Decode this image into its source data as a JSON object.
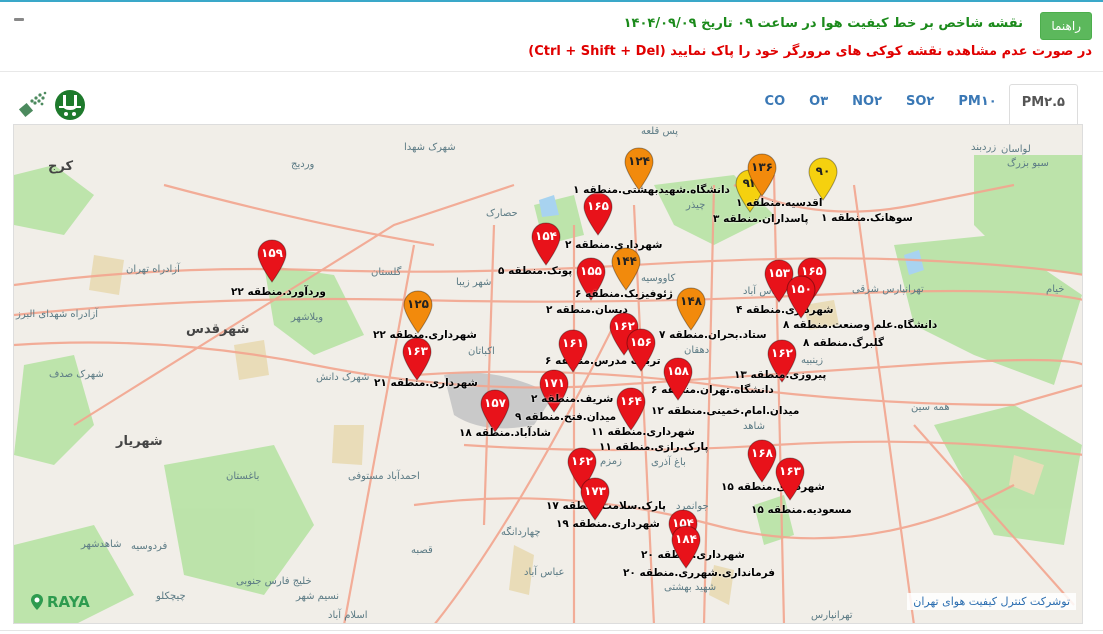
{
  "header": {
    "help_label": "راهنما",
    "title": "نقشه شاخص بر خط کیفیت هوا در ساعت ۰۹ تاریخ ۱۴۰۴/۰۹/۰۹",
    "warning": "در صورت عدم مشاهده نقشه کوکی های مرورگر خود را پاک نمایید (Ctrl + Shift + Del)"
  },
  "tabs": [
    {
      "label": "PM۲.۵",
      "active": true
    },
    {
      "label": "PM۱۰"
    },
    {
      "label": "SO۲"
    },
    {
      "label": "NO۲"
    },
    {
      "label": "O۳"
    },
    {
      "label": "CO"
    }
  ],
  "colors": {
    "red": "#e8121a",
    "orange": "#f28a0c",
    "yellow": "#f5d10f",
    "green_button": "#5cb85c",
    "title_green": "#1b8a1b",
    "warning_red": "#e00000"
  },
  "logos": [
    "air-quality-logo-icon",
    "tehran-municipality-logo-icon"
  ],
  "markers": [
    {
      "value": "۱۵۹",
      "level": "red",
      "label": "وردآورد.منطقه ۲۲"
    },
    {
      "value": "۱۲۵",
      "level": "orange",
      "label": "شهرداری.منطقه ۲۲"
    },
    {
      "value": "۱۶۳",
      "level": "red",
      "label": "شهرداری.منطقه ۲۱"
    },
    {
      "value": "۱۵۷",
      "level": "red",
      "label": "شادآباد.منطقه ۱۸"
    },
    {
      "value": "۱۷۱",
      "level": "red",
      "label": "میدان.فتح.منطقه ۹"
    },
    {
      "value": "۱۵۴",
      "level": "red",
      "label": "پونک.منطقه ۵"
    },
    {
      "value": "۱۶۵",
      "level": "red",
      "label": "شهرداری.منطقه ۲"
    },
    {
      "value": "۱۲۴",
      "level": "orange",
      "label": "دانشگاه.شهیدبهشتی.منطقه ۱"
    },
    {
      "value": "۱۵۵",
      "level": "red",
      "label": "دیسان.منطقه ۲"
    },
    {
      "value": "۱۴۴",
      "level": "orange",
      "label": "ژئوفیزیک.منطقه ۶"
    },
    {
      "value": "۱۶۲",
      "level": "red",
      "label": "تربیت مدرس.منطقه ۶"
    },
    {
      "value": "۱۴۸",
      "level": "orange",
      "label": "ستاد.بحران.منطقه ۷"
    },
    {
      "value": "۱۶۱",
      "level": "red",
      "label": "شریف.منطقه ۲"
    },
    {
      "value": "۱۵۶",
      "level": "red",
      "label": "دانشگاه.تهران.منطقه ۶"
    },
    {
      "value": "۱۵۸",
      "level": "red",
      "label": "میدان.امام.خمینی.منطقه ۱۲"
    },
    {
      "value": "۱۶۴",
      "level": "red",
      "label": "شهرداری.منطقه ۱۱"
    },
    {
      "value": "۱۶۲",
      "level": "red",
      "label": "پارک.سلامت.منطقه ۱۷"
    },
    {
      "value": "۱۷۳",
      "level": "red",
      "label": "شهرداری.منطقه ۱۹"
    },
    {
      "value": "۱۵۴",
      "level": "red",
      "label": "شهرداری.منطقه ۲۰"
    },
    {
      "value": "۱۸۴",
      "level": "red",
      "label": "فرمانداری.شهرری.منطقه ۲۰"
    },
    {
      "value": "۱۶۸",
      "level": "red",
      "label": "شهرداری.منطقه ۱۵"
    },
    {
      "value": "۱۶۳",
      "level": "red",
      "label": "مسعودیه.منطقه ۱۵"
    },
    {
      "value": "۱۶۲",
      "level": "red",
      "label": "پیروزی.منطقه ۱۳"
    },
    {
      "value": "۱۵۳",
      "level": "red",
      "label": "شهرداری.منطقه ۴"
    },
    {
      "value": "۱۶۵",
      "level": "red",
      "label": "دانشگاه.علم وصنعت.منطقه ۸"
    },
    {
      "value": "۱۵۰",
      "level": "red",
      "label": "گلبرگ.منطقه ۸"
    },
    {
      "value": "۹۴",
      "level": "yellow",
      "label": "پاسداران.منطقه ۳"
    },
    {
      "value": "۱۳۶",
      "level": "orange",
      "label": "اقدسیه.منطقه ۱"
    },
    {
      "value": "۹۰",
      "level": "yellow",
      "label": "سوهانک.منطقه ۱"
    }
  ],
  "extra_labels": [
    "پارک.رازی.منطقه ۱۱"
  ],
  "places": [
    "کرج",
    "شهرک شهدا",
    "وردیج",
    "پس قلعه",
    "زردبند",
    "لواسان",
    "سبو بزرگ",
    "حصارک",
    "گلستان",
    "شهر زیبا",
    "ویلاشهر",
    "شهرقدس",
    "اکباتان",
    "شهرک دانش",
    "شهرک صدف",
    "شهریار",
    "چیذر",
    "کاووسیه",
    "عباس آباد",
    "دهقان",
    "تهرانپارس شرقی",
    "زینبیه",
    "شاهد",
    "همه سین",
    "باغ آذری",
    "زمزم",
    "جوانمرد",
    "چهاردانگه",
    "عباس آباد",
    "شهید بهشتی",
    "باغستان",
    "احمدآباد مستوفی",
    "قصبه",
    "فردوسیه",
    "شاهدشهر",
    "چیچکلو",
    "نسیم شهر",
    "اسلام آباد",
    "تهرانپارس",
    "خیام",
    "آزادراه شهدای البرز",
    "آزادراه تهران",
    "خلیج فارس جنوبی"
  ],
  "branding": {
    "raya": "RAYA",
    "attribution": "توشرکت کنترل کیفیت هوای تهران"
  }
}
